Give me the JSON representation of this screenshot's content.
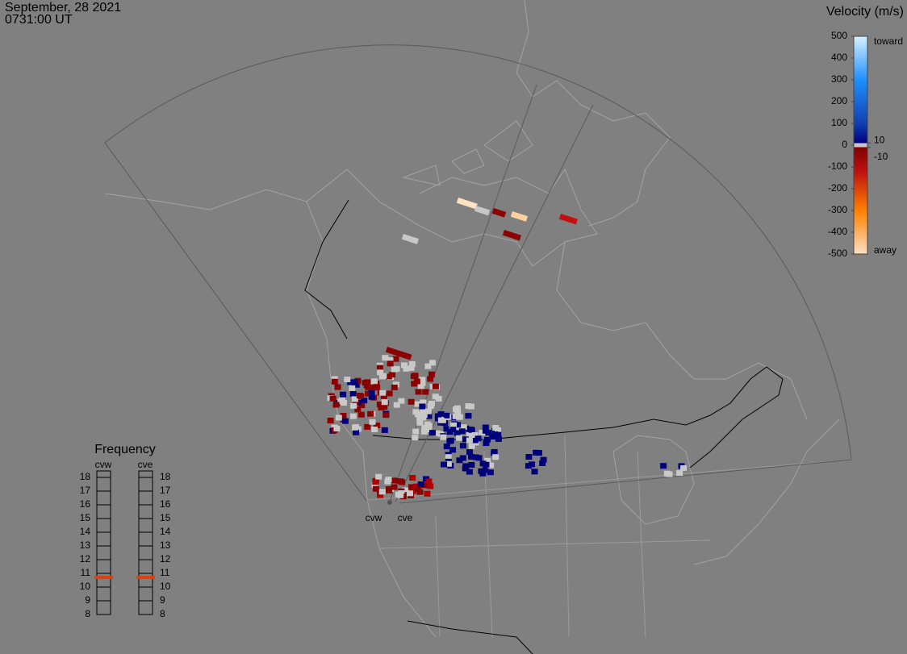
{
  "header": {
    "date": "September, 28 2021",
    "time": "0731:00 UT"
  },
  "velocity_scale": {
    "title": "Velocity (m/s)",
    "lim": [
      -500,
      500
    ],
    "ticks": [
      500,
      400,
      300,
      200,
      100,
      0,
      -100,
      -200,
      -300,
      -400,
      -500
    ],
    "inner_ticks": [
      10,
      -10
    ],
    "toward": "toward",
    "away": "away"
  },
  "frequency": {
    "title": "Frequency",
    "lim": [
      8,
      18
    ],
    "ticks": [
      18,
      17,
      16,
      15,
      14,
      13,
      12,
      11,
      10,
      9,
      8
    ],
    "radars": [
      {
        "name": "cvw",
        "value": 10.7
      },
      {
        "name": "cve",
        "value": 10.7
      }
    ]
  },
  "radar_labels": [
    "cvw",
    "cve"
  ]
}
